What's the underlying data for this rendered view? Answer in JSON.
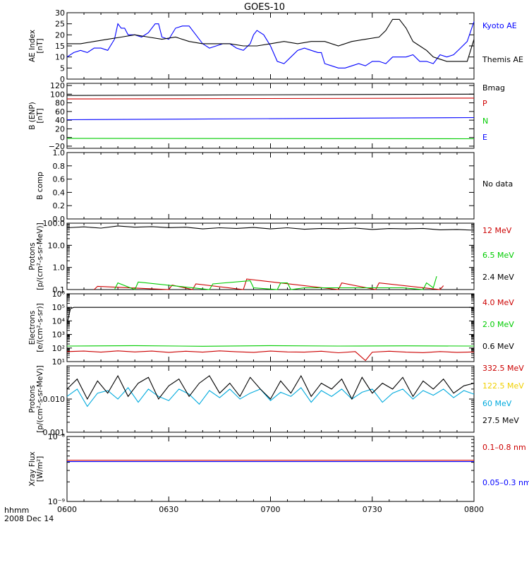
{
  "title": "GOES-10",
  "footer": {
    "line1": "hhmm",
    "line2": "2008 Dec 14"
  },
  "x_ticks": [
    "0600",
    "0630",
    "0700",
    "0730",
    "0800"
  ],
  "chart_data": [
    {
      "type": "line",
      "ylabel": [
        "AE Index",
        "[nT]"
      ],
      "ylim": [
        0,
        30
      ],
      "ticks": [
        0,
        5,
        10,
        15,
        20,
        25,
        30
      ],
      "tick_labels": [
        "0",
        "5",
        "10",
        "15",
        "20",
        "25",
        "30"
      ],
      "series": [
        {
          "name": "Kyoto AE",
          "color": "#0000ff",
          "x": [
            0,
            2,
            4,
            6,
            8,
            10,
            12,
            14,
            15,
            16,
            17,
            18,
            20,
            22,
            24,
            26,
            27,
            28,
            30,
            32,
            34,
            36,
            38,
            40,
            42,
            44,
            46,
            48,
            50,
            52,
            54,
            55,
            56,
            58,
            60,
            62,
            64,
            66,
            68,
            70,
            72,
            74,
            75,
            76,
            78,
            80,
            82,
            84,
            86,
            88,
            90,
            92,
            94,
            96,
            98,
            100,
            102,
            104,
            106,
            108,
            110,
            112,
            114,
            116,
            118,
            120
          ],
          "y": [
            10,
            12,
            13,
            12,
            14,
            14,
            13,
            18,
            25,
            23,
            23,
            20,
            20,
            19,
            21,
            25,
            25,
            19,
            18,
            23,
            24,
            24,
            20,
            16,
            14,
            15,
            16,
            16,
            14,
            13,
            16,
            20,
            22,
            20,
            15,
            8,
            7,
            10,
            13,
            14,
            13,
            12,
            12,
            7,
            6,
            5,
            5,
            6,
            7,
            6,
            8,
            8,
            7,
            10,
            10,
            10,
            11,
            8,
            8,
            7,
            11,
            10,
            11,
            14,
            17,
            26
          ]
        },
        {
          "name": "Themis AE",
          "color": "#000000",
          "x": [
            0,
            4,
            8,
            12,
            16,
            20,
            24,
            28,
            32,
            36,
            40,
            44,
            48,
            52,
            56,
            60,
            64,
            68,
            72,
            76,
            80,
            84,
            88,
            92,
            94,
            96,
            98,
            100,
            102,
            104,
            106,
            108,
            110,
            112,
            114,
            116,
            118,
            120
          ],
          "y": [
            16,
            16,
            17,
            18,
            19,
            20,
            19,
            18,
            19,
            17,
            16,
            16,
            16,
            15,
            15,
            16,
            17,
            16,
            17,
            17,
            15,
            17,
            18,
            19,
            22,
            27,
            27,
            23,
            17,
            15,
            13,
            10,
            9,
            8,
            8,
            8,
            8,
            18
          ]
        }
      ]
    },
    {
      "type": "line",
      "ylabel": [
        "B (ENP)",
        "[nT]"
      ],
      "ylim": [
        -25,
        125
      ],
      "ticks": [
        -20,
        0,
        20,
        40,
        60,
        80,
        100,
        120
      ],
      "tick_labels": [
        "−20",
        "0",
        "20",
        "40",
        "60",
        "80",
        "100",
        "120"
      ],
      "series": [
        {
          "name": "Bmag",
          "color": "#000000",
          "x": [
            0,
            120
          ],
          "y": [
            97,
            100
          ]
        },
        {
          "name": "P",
          "color": "#d00000",
          "x": [
            0,
            120
          ],
          "y": [
            89,
            91
          ]
        },
        {
          "name": "N",
          "color": "#00cc00",
          "x": [
            0,
            120
          ],
          "y": [
            -2,
            -3
          ]
        },
        {
          "name": "E",
          "color": "#0000ff",
          "x": [
            0,
            120
          ],
          "y": [
            41,
            46
          ]
        }
      ]
    },
    {
      "type": "line",
      "ylabel": [
        "B comp"
      ],
      "ylim": [
        0,
        1
      ],
      "ticks": [
        0,
        0.2,
        0.4,
        0.6,
        0.8,
        1.0
      ],
      "tick_labels": [
        "0.0",
        "0.2",
        "0.4",
        "0.6",
        "0.8",
        "1.0"
      ],
      "note": "No data",
      "series": []
    },
    {
      "type": "line",
      "log": true,
      "ylabel": [
        "Protons",
        "[p/(cm²-s-sr-MeV)]"
      ],
      "ylim": [
        0.1,
        100
      ],
      "ticks": [
        0.1,
        1,
        10,
        100
      ],
      "tick_labels": [
        "0.1",
        "1.0",
        "10.0",
        "100.0"
      ],
      "series": [
        {
          "name": "12 MeV",
          "color": "#cc0000",
          "x": [
            8,
            9,
            30,
            31,
            37,
            38,
            52,
            53,
            80,
            81,
            91,
            92,
            110,
            111
          ],
          "y": [
            0.1,
            0.14,
            0.1,
            0.16,
            0.1,
            0.18,
            0.1,
            0.3,
            0.1,
            0.2,
            0.1,
            0.2,
            0.1,
            0.15
          ]
        },
        {
          "name": "6.5 MeV",
          "color": "#00cc00",
          "x": [
            14,
            15,
            20,
            21,
            42,
            43,
            54,
            55,
            62,
            63,
            65,
            66,
            70,
            71,
            76,
            77,
            98,
            99,
            105,
            106,
            108,
            109
          ],
          "y": [
            0.1,
            0.2,
            0.1,
            0.22,
            0.1,
            0.18,
            0.25,
            0.12,
            0.1,
            0.2,
            0.2,
            0.1,
            0.12,
            0.12,
            0.12,
            0.12,
            0.12,
            0.12,
            0.1,
            0.2,
            0.12,
            0.4
          ]
        },
        {
          "name": "2.4 MeV",
          "color": "#000000",
          "x": [
            0,
            5,
            10,
            15,
            20,
            25,
            30,
            35,
            40,
            45,
            50,
            55,
            60,
            65,
            70,
            75,
            80,
            85,
            90,
            95,
            100,
            105,
            110,
            115,
            120
          ],
          "y": [
            62,
            68,
            60,
            75,
            66,
            70,
            63,
            66,
            55,
            62,
            58,
            64,
            55,
            62,
            53,
            58,
            56,
            60,
            52,
            57,
            55,
            58,
            50,
            52,
            48
          ]
        }
      ]
    },
    {
      "type": "line",
      "log": true,
      "ylabel": [
        "Electrons",
        "[e/(cm²-s-sr)]"
      ],
      "ylim": [
        10,
        1000000
      ],
      "ticks": [
        10,
        100,
        1000,
        10000,
        100000,
        1000000
      ],
      "tick_labels": [
        "10¹",
        "10²",
        "10³",
        "10⁴",
        "10⁵",
        "10⁶"
      ],
      "series": [
        {
          "name": "4.0 MeV",
          "color": "#cc0000",
          "x": [
            0,
            5,
            10,
            15,
            20,
            25,
            30,
            35,
            40,
            45,
            50,
            55,
            60,
            65,
            70,
            75,
            80,
            85,
            88,
            90,
            95,
            100,
            105,
            110,
            115,
            120
          ],
          "y": [
            55,
            60,
            50,
            62,
            52,
            60,
            48,
            58,
            50,
            62,
            53,
            48,
            60,
            52,
            50,
            58,
            45,
            55,
            12,
            50,
            58,
            50,
            46,
            55,
            48,
            52
          ]
        },
        {
          "name": "2.0 MeV",
          "color": "#00cc00",
          "x": [
            0,
            20,
            40,
            60,
            80,
            100,
            120
          ],
          "y": [
            140,
            150,
            135,
            150,
            140,
            145,
            140
          ]
        },
        {
          "name": "0.6 MeV",
          "color": "#000000",
          "x": [
            0,
            1,
            2,
            120
          ],
          "y": [
            6000,
            80000,
            100000,
            100000
          ]
        }
      ]
    },
    {
      "type": "line",
      "log": true,
      "ylabel": [
        "Protons",
        "[p/(cm²-s-sr-MeV)]"
      ],
      "ylim": [
        0.001,
        0.1
      ],
      "ticks": [
        0.001,
        0.01,
        0.1
      ],
      "tick_labels": [
        "0.001",
        "0.010",
        ""
      ],
      "series": [
        {
          "name": "332.5 MeV",
          "color": "#cc0000",
          "x": [],
          "y": []
        },
        {
          "name": "122.5 MeV",
          "color": "#ffdd00",
          "x": [],
          "y": []
        },
        {
          "name": "60 MeV",
          "color": "#00aadd",
          "x": [
            0,
            3,
            6,
            9,
            12,
            15,
            18,
            21,
            24,
            27,
            30,
            33,
            36,
            39,
            42,
            45,
            48,
            51,
            54,
            57,
            60,
            63,
            66,
            69,
            72,
            75,
            78,
            81,
            84,
            87,
            90,
            93,
            96,
            99,
            102,
            105,
            108,
            111,
            114,
            117,
            120
          ],
          "y": [
            0.012,
            0.02,
            0.006,
            0.015,
            0.018,
            0.01,
            0.022,
            0.008,
            0.02,
            0.012,
            0.009,
            0.02,
            0.014,
            0.007,
            0.018,
            0.011,
            0.02,
            0.01,
            0.015,
            0.02,
            0.009,
            0.016,
            0.012,
            0.022,
            0.008,
            0.018,
            0.012,
            0.02,
            0.01,
            0.016,
            0.02,
            0.008,
            0.015,
            0.02,
            0.01,
            0.018,
            0.013,
            0.02,
            0.011,
            0.018,
            0.014
          ]
        },
        {
          "name": "27.5 MeV",
          "color": "#000000",
          "x": [
            0,
            3,
            6,
            9,
            12,
            15,
            18,
            21,
            24,
            27,
            30,
            33,
            36,
            39,
            42,
            45,
            48,
            51,
            54,
            57,
            60,
            63,
            66,
            69,
            72,
            75,
            78,
            81,
            84,
            87,
            90,
            93,
            96,
            99,
            102,
            105,
            108,
            111,
            114,
            117,
            120
          ],
          "y": [
            0.02,
            0.04,
            0.01,
            0.035,
            0.015,
            0.05,
            0.012,
            0.03,
            0.045,
            0.01,
            0.025,
            0.04,
            0.012,
            0.03,
            0.05,
            0.015,
            0.03,
            0.012,
            0.045,
            0.02,
            0.01,
            0.035,
            0.015,
            0.05,
            0.012,
            0.03,
            0.02,
            0.04,
            0.01,
            0.045,
            0.015,
            0.03,
            0.02,
            0.045,
            0.012,
            0.035,
            0.02,
            0.04,
            0.015,
            0.025,
            0.03
          ]
        }
      ]
    },
    {
      "type": "line",
      "log": true,
      "ylabel": [
        "Xray Flux",
        "[W/m²]"
      ],
      "ylim": [
        1e-09,
        1e-08
      ],
      "ticks": [
        1e-09,
        1e-08
      ],
      "tick_labels": [
        "10⁻⁹",
        "10⁻⁸"
      ],
      "series": [
        {
          "name": "0.1–0.8 nm",
          "color": "#cc0000",
          "x": [
            0,
            120
          ],
          "y": [
            4.3e-09,
            4.3e-09
          ]
        },
        {
          "name": "0.05–0.3 nm",
          "color": "#0000ff",
          "x": [
            0,
            120
          ],
          "y": [
            4.1e-09,
            4.1e-09
          ]
        }
      ]
    }
  ]
}
